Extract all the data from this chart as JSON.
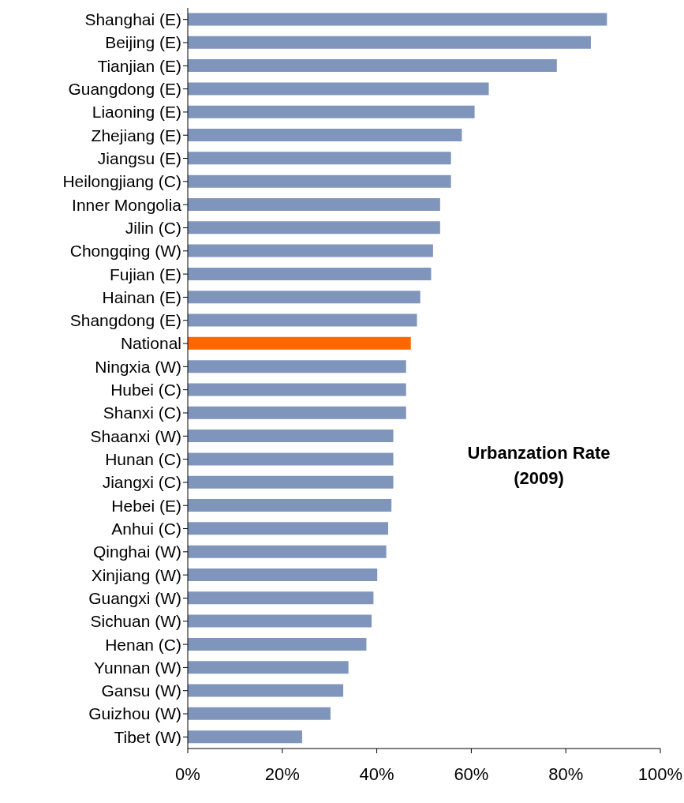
{
  "chart_data": {
    "type": "bar",
    "orientation": "horizontal",
    "title": "Urbanzation Rate (2009)",
    "categories": [
      "Shanghai (E)",
      "Beijing (E)",
      "Tianjian (E)",
      "Guangdong (E)",
      "Liaoning (E)",
      "Zhejiang (E)",
      "Jiangsu (E)",
      "Heilongjiang (C)",
      "Inner Mongolia",
      "Jilin (C)",
      "Chongqing (W)",
      "Fujian (E)",
      "Hainan (E)",
      "Shangdong (E)",
      "National",
      "Ningxia (W)",
      "Hubei (C)",
      "Shanxi (C)",
      "Shaanxi (W)",
      "Hunan (C)",
      "Jiangxi (C)",
      "Hebei (E)",
      "Anhui (C)",
      "Qinghai (W)",
      "Xinjiang (W)",
      "Guangxi (W)",
      "Sichuan (W)",
      "Henan (C)",
      "Yunnan (W)",
      "Gansu (W)",
      "Guizhou (W)",
      "Tibet (W)"
    ],
    "values": [
      88.7,
      85.3,
      78.1,
      63.7,
      60.7,
      58.0,
      55.7,
      55.7,
      53.4,
      53.4,
      51.9,
      51.5,
      49.2,
      48.5,
      47.2,
      46.2,
      46.2,
      46.2,
      43.5,
      43.5,
      43.5,
      43.1,
      42.4,
      42.0,
      40.1,
      39.3,
      38.9,
      37.8,
      34.0,
      32.9,
      30.2,
      24.2
    ],
    "colors": [
      "#7f95bb",
      "#7f95bb",
      "#7f95bb",
      "#7f95bb",
      "#7f95bb",
      "#7f95bb",
      "#7f95bb",
      "#7f95bb",
      "#7f95bb",
      "#7f95bb",
      "#7f95bb",
      "#7f95bb",
      "#7f95bb",
      "#7f95bb",
      "#ff6600",
      "#7f95bb",
      "#7f95bb",
      "#7f95bb",
      "#7f95bb",
      "#7f95bb",
      "#7f95bb",
      "#7f95bb",
      "#7f95bb",
      "#7f95bb",
      "#7f95bb",
      "#7f95bb",
      "#7f95bb",
      "#7f95bb",
      "#7f95bb",
      "#7f95bb",
      "#7f95bb",
      "#7f95bb"
    ],
    "xlim": [
      0,
      100
    ],
    "xticks": [
      {
        "value": 0,
        "label": "0%"
      },
      {
        "value": 20,
        "label": "20%"
      },
      {
        "value": 40,
        "label": "40%"
      },
      {
        "value": 60,
        "label": "60%"
      },
      {
        "value": 80,
        "label": "80%"
      },
      {
        "value": 100,
        "label": "100%"
      }
    ],
    "grid": false
  }
}
